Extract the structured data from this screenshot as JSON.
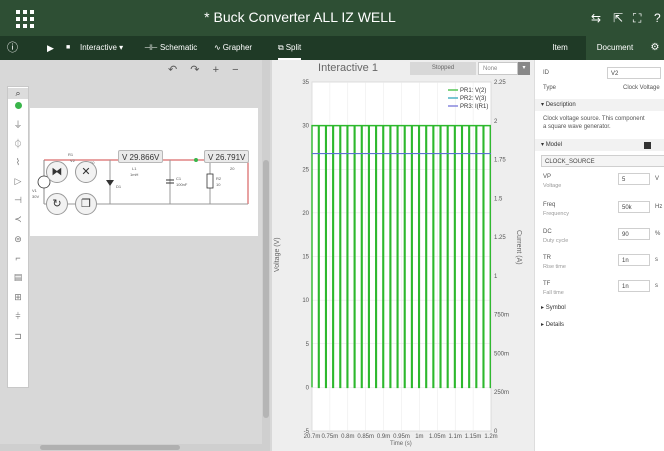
{
  "app": {
    "title": "* Buck Converter ALL IZ WELL"
  },
  "toolbar": {
    "info_icon": "ⓘ",
    "play_icon": "▶",
    "stop_icon": "■",
    "mode_label": "Interactive ▾",
    "schematic_label": "Schematic",
    "grapher_label": "Grapher",
    "split_label": "Split"
  },
  "right_tabs": {
    "item": "Item",
    "document": "Document"
  },
  "schematic": {
    "probe_1": "V 29.866V",
    "probe_2": "V 26.791V",
    "label_r1": "R1",
    "label_r2": "R2",
    "label_c1": "C1",
    "label_l1": "L1",
    "label_d1": "D1",
    "label_v2": "V2",
    "label_v1": "V1",
    "label_val1": "1mH",
    "label_val2": "100nF",
    "label_val3": "10",
    "label_val4": "10",
    "label_val5": "20",
    "label_val6": "30V"
  },
  "grapher": {
    "tab_label": "Interactive 1",
    "status": "Stopped",
    "none_label": "None",
    "legend": [
      "PR1: V(2)",
      "PR2: V(3)",
      "PR3: I(R1)"
    ],
    "y_axis_title": "Voltage (V)",
    "y2_axis_title": "Current (A)",
    "x_axis_title": "Time (s)"
  },
  "chart_data": {
    "type": "line",
    "xlabel": "Time (s)",
    "ylabel": "Voltage (V)",
    "y2label": "Current (A)",
    "xlim": [
      0.7,
      1.2
    ],
    "ylim": [
      -5,
      35
    ],
    "y2lim": [
      0,
      2.25
    ],
    "x_ticks": [
      "20.7m",
      "0.75m",
      "0.8m",
      "0.85m",
      "0.9m",
      "0.95m",
      "1m",
      "1.05m",
      "1.1m",
      "1.15m",
      "1.2m"
    ],
    "y_ticks": [
      "35",
      "30",
      "25",
      "20",
      "15",
      "10",
      "5",
      "0",
      "-5"
    ],
    "y2_ticks": [
      "2.25",
      "2",
      "1.75",
      "1.5",
      "1.25",
      "1",
      "750m",
      "500m",
      "250m",
      "0"
    ],
    "series": [
      {
        "name": "PR1: V(2)",
        "color": "#2db82d",
        "waveform": "square",
        "high": 30,
        "low": 0,
        "periods": 25,
        "duty": 0.9
      },
      {
        "name": "PR2: V(3)",
        "color": "#1fa0b5",
        "value": 26.8
      },
      {
        "name": "PR3: I(R1)",
        "color": "#6a6ad6",
        "value": 26.8
      }
    ],
    "grid": true,
    "legend_position": "top-right"
  },
  "properties": {
    "id_label": "ID",
    "id_value": "V2",
    "type_label": "Type",
    "type_value": "Clock Voltage",
    "description_header": "Description",
    "description_text_1": "Clock voltage source. This component",
    "description_text_2": "a square wave generator.",
    "model_header": "Model",
    "model_select": "CLOCK_SOURCE",
    "vp_label": "VP",
    "vp_sub": "Voltage",
    "vp_value": "5",
    "vp_unit": "V",
    "freq_label": "Freq",
    "freq_sub": "Frequency",
    "freq_value": "50k",
    "freq_unit": "Hz",
    "dc_label": "DC",
    "dc_sub": "Duty cycle",
    "dc_value": "90",
    "dc_unit": "%",
    "tr_label": "TR",
    "tr_sub": "Rise time",
    "tr_value": "1n",
    "tr_unit": "s",
    "tf_label": "TF",
    "tf_sub": "Fall time",
    "tf_value": "1n",
    "tf_unit": "s",
    "symbol_header": "Symbol",
    "details_header": "Details"
  }
}
